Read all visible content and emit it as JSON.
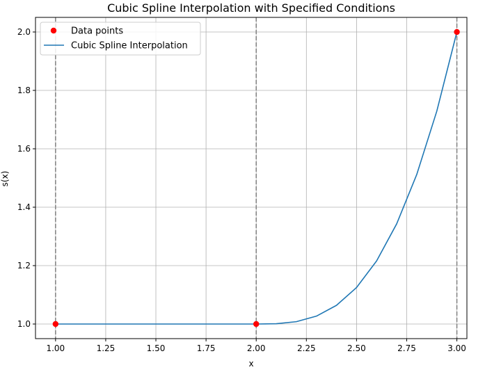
{
  "chart_data": {
    "type": "line",
    "title": "Cubic Spline Interpolation with Specified Conditions",
    "xlabel": "x",
    "ylabel": "s(x)",
    "xlim": [
      0.9,
      3.05
    ],
    "ylim": [
      0.95,
      2.05
    ],
    "xticks": [
      1.0,
      1.25,
      1.5,
      1.75,
      2.0,
      2.25,
      2.5,
      2.75,
      3.0
    ],
    "xtick_labels": [
      "1.00",
      "1.25",
      "1.50",
      "1.75",
      "2.00",
      "2.25",
      "2.50",
      "2.75",
      "3.00"
    ],
    "yticks": [
      1.0,
      1.2,
      1.4,
      1.6,
      1.8,
      2.0
    ],
    "ytick_labels": [
      "1.0",
      "1.2",
      "1.4",
      "1.6",
      "1.8",
      "2.0"
    ],
    "grid": true,
    "legend_position": "top-left",
    "vlines": [
      1.0,
      2.0,
      3.0
    ],
    "vline_color": "#808080",
    "series": [
      {
        "name": "Data points",
        "kind": "scatter",
        "color": "#ff0000",
        "x": [
          1.0,
          2.0,
          3.0
        ],
        "y": [
          1.0,
          1.0,
          2.0
        ]
      },
      {
        "name": "Cubic Spline Interpolation",
        "kind": "line",
        "color": "#1f77b4",
        "x": [
          1.0,
          1.25,
          1.5,
          1.75,
          2.0,
          2.1,
          2.2,
          2.3,
          2.4,
          2.5,
          2.6,
          2.7,
          2.8,
          2.9,
          3.0
        ],
        "y": [
          1.0,
          1.0,
          1.0,
          1.0,
          1.0,
          1.001,
          1.008,
          1.027,
          1.064,
          1.125,
          1.216,
          1.343,
          1.512,
          1.729,
          2.0
        ]
      }
    ]
  }
}
